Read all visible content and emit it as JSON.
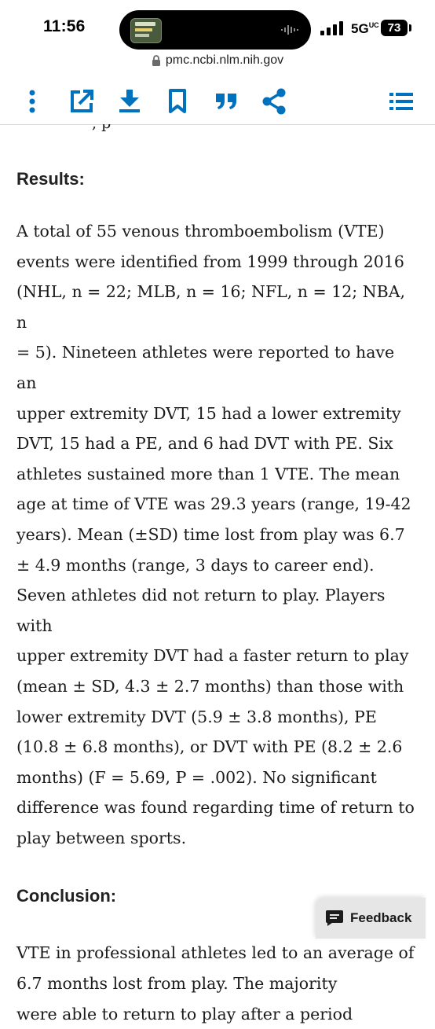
{
  "status_bar": {
    "time": "11:56",
    "network": "5G",
    "network_suffix": "UC",
    "battery": "73"
  },
  "browser": {
    "url": "pmc.ncbi.nlm.nih.gov"
  },
  "toolbar": {
    "icons": [
      "more-vertical-icon",
      "open-external-icon",
      "download-icon",
      "bookmark-icon",
      "cite-quote-icon",
      "share-icon",
      "contents-list-icon"
    ],
    "accent_color": "#0071bc"
  },
  "article": {
    "cut_text": ", p",
    "results_heading": "Results:",
    "results_lines": [
      "A total of 55 venous thromboembolism (VTE)",
      "events were identified from 1999 through 2016",
      "(NHL, n = 22; MLB, n = 16; NFL, n = 12; NBA, n",
      "= 5). Nineteen athletes were reported to have an",
      "upper extremity DVT, 15 had a lower extremity",
      "DVT, 15 had a PE, and 6 had DVT with PE. Six",
      "athletes sustained more than 1 VTE. The mean",
      "age at time of VTE was 29.3 years (range, 19-42",
      "years). Mean (±SD) time lost from play was 6.7",
      "± 4.9 months (range, 3 days to career end).",
      "Seven athletes did not return to play. Players with",
      "upper extremity DVT had a faster return to play",
      "(mean ± SD, 4.3 ± 2.7 months) than those with",
      "lower extremity DVT (5.9 ± 3.8 months), PE",
      "(10.8 ± 6.8 months), or DVT with PE (8.2 ± 2.6",
      "months) (F = 5.69, P = .002). No significant",
      "difference was found regarding time of return to",
      "play between sports."
    ],
    "conclusion_heading": "Conclusion:",
    "conclusion_lines": [
      "VTE in professional athletes led to an average of",
      "6.7 months lost from play. The majority",
      "were able to return to play after a period"
    ]
  },
  "feedback": {
    "label": "Feedback"
  }
}
